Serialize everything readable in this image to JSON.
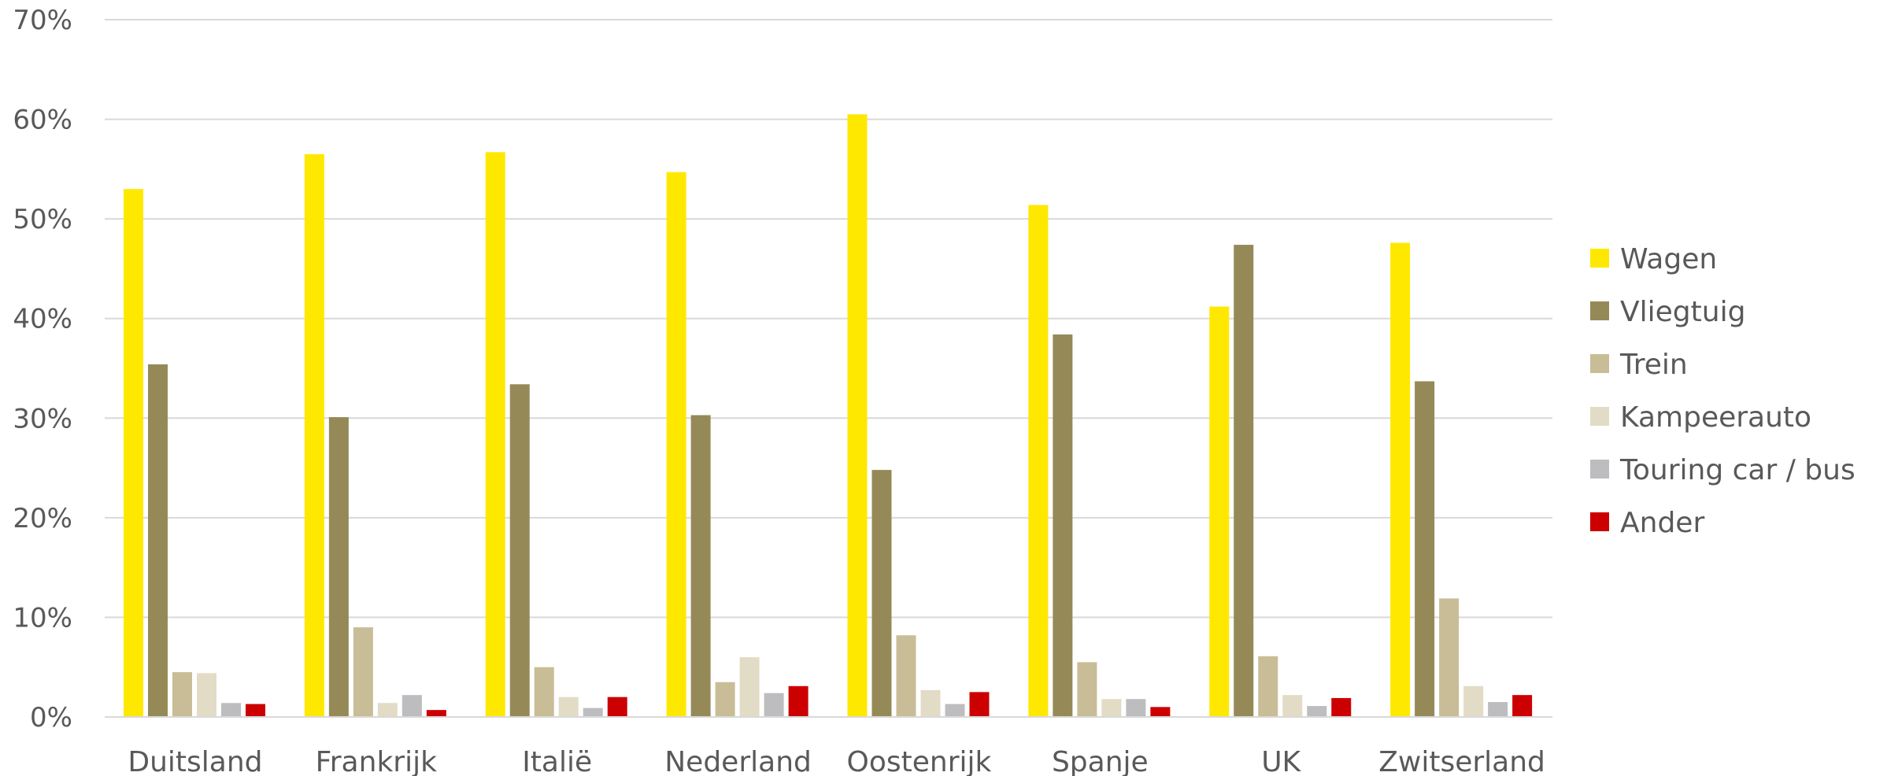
{
  "chart_data": {
    "type": "bar",
    "title": "",
    "xlabel": "",
    "ylabel": "",
    "ylim": [
      0,
      70
    ],
    "yticks": [
      0,
      10,
      20,
      30,
      40,
      50,
      60,
      70
    ],
    "ytick_labels": [
      "0%",
      "10%",
      "20%",
      "30%",
      "40%",
      "50%",
      "60%",
      "70%"
    ],
    "grid": true,
    "legend_position": "right",
    "categories": [
      "Duitsland",
      "Frankrijk",
      "Italië",
      "Nederland",
      "Oostenrijk",
      "Spanje",
      "UK",
      "Zwitserland"
    ],
    "series": [
      {
        "name": "Wagen",
        "color": "#FFE800",
        "values": [
          53.0,
          56.5,
          56.7,
          54.7,
          60.5,
          51.4,
          41.2,
          47.6
        ]
      },
      {
        "name": "Vliegtuig",
        "color": "#958A57",
        "values": [
          35.4,
          30.1,
          33.4,
          30.3,
          24.8,
          38.4,
          47.4,
          33.7
        ]
      },
      {
        "name": "Trein",
        "color": "#C8BD97",
        "values": [
          4.5,
          9.0,
          5.0,
          3.5,
          8.2,
          5.5,
          6.1,
          11.9
        ]
      },
      {
        "name": "Kampeerauto",
        "color": "#E2DCC6",
        "values": [
          4.4,
          1.4,
          2.0,
          6.0,
          2.7,
          1.8,
          2.2,
          3.1
        ]
      },
      {
        "name": "Touring car / bus",
        "color": "#BDBDBF",
        "values": [
          1.4,
          2.2,
          0.9,
          2.4,
          1.3,
          1.8,
          1.1,
          1.5
        ]
      },
      {
        "name": "Ander",
        "color": "#CC0000",
        "values": [
          1.3,
          0.7,
          2.0,
          3.1,
          2.5,
          1.0,
          1.9,
          2.2
        ]
      }
    ]
  }
}
